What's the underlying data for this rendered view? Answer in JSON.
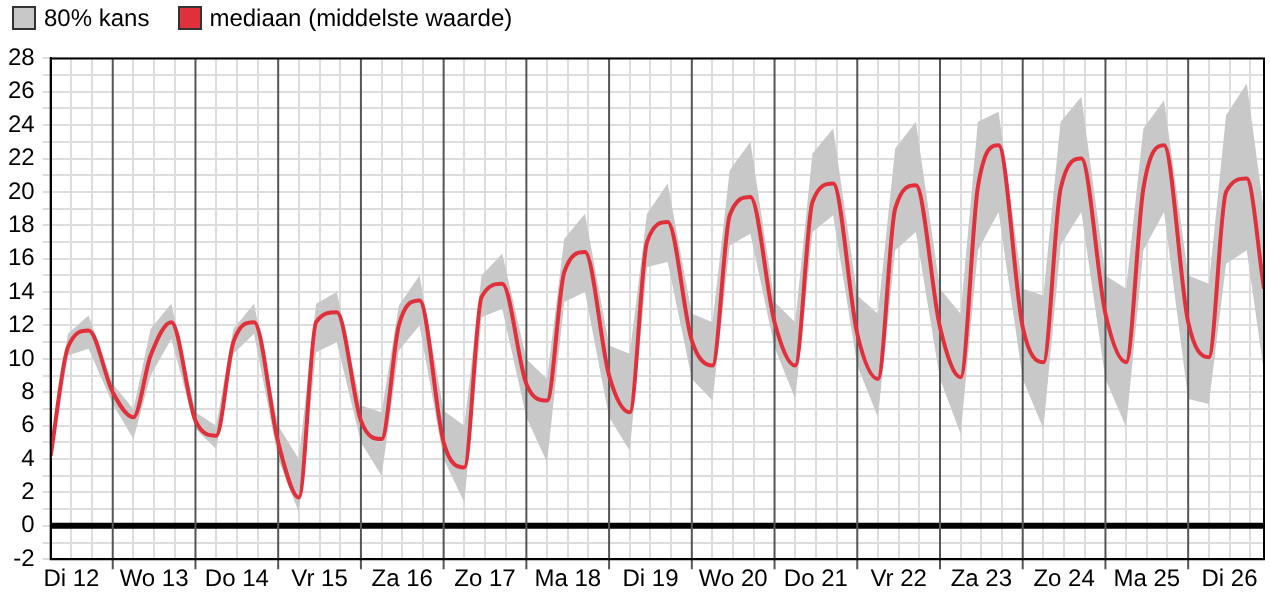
{
  "chart_data": {
    "type": "line",
    "legend": "top left",
    "grid": true,
    "marker": "none",
    "line_style": "solid",
    "annotations": [
      "80% kans"
    ],
    "x": [
      "--03-12T06:00",
      "--03-12T11:00",
      "--03-12T17:00",
      "--03-13T00:00",
      "--03-13T06:00",
      "--03-13T11:00",
      "--03-13T17:00",
      "--03-14T00:00",
      "--03-14T06:00",
      "--03-14T11:00",
      "--03-14T17:00",
      "--03-15T00:00",
      "--03-15T06:00",
      "--03-15T11:00",
      "--03-15T17:00",
      "--03-16T00:00",
      "--03-16T06:00",
      "--03-16T11:00",
      "--03-16T17:00",
      "--03-17T00:00",
      "--03-17T06:00",
      "--03-17T11:00",
      "--03-17T17:00",
      "--03-18T00:00",
      "--03-18T06:00",
      "--03-18T11:00",
      "--03-18T17:00",
      "--03-19T00:00",
      "--03-19T06:00",
      "--03-19T11:00",
      "--03-19T17:00",
      "--03-20T00:00",
      "--03-20T06:00",
      "--03-20T11:00",
      "--03-20T17:00",
      "--03-21T00:00",
      "--03-21T06:00",
      "--03-21T11:00",
      "--03-21T17:00",
      "--03-22T00:00",
      "--03-22T06:00",
      "--03-22T11:00",
      "--03-22T17:00",
      "--03-23T00:00",
      "--03-23T06:00",
      "--03-23T11:00",
      "--03-23T17:00",
      "--03-24T00:00",
      "--03-24T06:00",
      "--03-24T11:00",
      "--03-24T17:00",
      "--03-25T00:00",
      "--03-25T06:00",
      "--03-25T11:00",
      "--03-25T17:00",
      "--03-26T00:00",
      "--03-26T06:00",
      "--03-26T11:00",
      "--03-26T17:00",
      "--03-26T22:00"
    ],
    "xlim": [
      "--03-12T06:00",
      "--03-26T22:00"
    ],
    "xticks": [
      {
        "value": "--03-12T12:00",
        "label": "Di 12"
      },
      {
        "value": "--03-12T18:00",
        "label": null
      },
      {
        "value": "--03-13T06:00",
        "label": null
      },
      {
        "value": "--03-13T12:00",
        "label": "Wo 13"
      },
      {
        "value": "--03-13T18:00",
        "label": null
      },
      {
        "value": "--03-14T06:00",
        "label": null
      },
      {
        "value": "--03-14T12:00",
        "label": "Do 14"
      },
      {
        "value": "--03-14T18:00",
        "label": null
      },
      {
        "value": "--03-15T06:00",
        "label": null
      },
      {
        "value": "--03-15T12:00",
        "label": "Vr 15"
      },
      {
        "value": "--03-15T18:00",
        "label": null
      },
      {
        "value": "--03-16T06:00",
        "label": null
      },
      {
        "value": "--03-16T12:00",
        "label": "Za 16"
      },
      {
        "value": "--03-16T18:00",
        "label": null
      },
      {
        "value": "--03-17T06:00",
        "label": null
      },
      {
        "value": "--03-17T12:00",
        "label": "Zo 17"
      },
      {
        "value": "--03-17T18:00",
        "label": null
      },
      {
        "value": "--03-18T06:00",
        "label": null
      },
      {
        "value": "--03-18T12:00",
        "label": "Ma 18"
      },
      {
        "value": "--03-18T18:00",
        "label": null
      },
      {
        "value": "--03-19T06:00",
        "label": null
      },
      {
        "value": "--03-19T12:00",
        "label": "Di 19"
      },
      {
        "value": "--03-19T18:00",
        "label": null
      },
      {
        "value": "--03-20T06:00",
        "label": null
      },
      {
        "value": "--03-20T12:00",
        "label": "Wo 20"
      },
      {
        "value": "--03-20T18:00",
        "label": null
      },
      {
        "value": "--03-21T06:00",
        "label": null
      },
      {
        "value": "--03-21T12:00",
        "label": "Do 21"
      },
      {
        "value": "--03-21T18:00",
        "label": null
      },
      {
        "value": "--03-22T06:00",
        "label": null
      },
      {
        "value": "--03-22T12:00",
        "label": "Vr 22"
      },
      {
        "value": "--03-22T18:00",
        "label": null
      },
      {
        "value": "--03-23T06:00",
        "label": null
      },
      {
        "value": "--03-23T12:00",
        "label": "Za 23"
      },
      {
        "value": "--03-23T18:00",
        "label": null
      },
      {
        "value": "--03-24T06:00",
        "label": null
      },
      {
        "value": "--03-24T12:00",
        "label": "Zo 24"
      },
      {
        "value": "--03-24T18:00",
        "label": null
      },
      {
        "value": "--03-25T06:00",
        "label": null
      },
      {
        "value": "--03-25T12:00",
        "label": "Ma 25"
      },
      {
        "value": "--03-25T18:00",
        "label": null
      },
      {
        "value": "--03-26T06:00",
        "label": null
      },
      {
        "value": "--03-26T12:00",
        "label": "Di 26"
      },
      {
        "value": "--03-26T18:00",
        "label": null
      }
    ],
    "ylim": [
      -2,
      28
    ],
    "yticks": [
      -2,
      {
        "value": -1,
        "label": null
      },
      0,
      {
        "value": 1,
        "label": null
      },
      2,
      {
        "value": 3,
        "label": null
      },
      4,
      {
        "value": 5,
        "label": null
      },
      6,
      {
        "value": 7,
        "label": null
      },
      8,
      {
        "value": 9,
        "label": null
      },
      10,
      {
        "value": 11,
        "label": null
      },
      12,
      {
        "value": 13,
        "label": null
      },
      14,
      {
        "value": 15,
        "label": null
      },
      16,
      {
        "value": 17,
        "label": null
      },
      18,
      {
        "value": 19,
        "label": null
      },
      20,
      {
        "value": 21,
        "label": null
      },
      22,
      {
        "value": 23,
        "label": null
      },
      24,
      {
        "value": 25,
        "label": null
      },
      26,
      {
        "value": 27,
        "label": null
      },
      28
    ],
    "ref_lines": [
      {
        "axis": "y",
        "value": 0,
        "color": "#000000"
      },
      {
        "axis": "x",
        "value": "--03-13",
        "color": "#555555"
      },
      {
        "axis": "x",
        "value": "--03-14",
        "color": "#555555"
      },
      {
        "axis": "x",
        "value": "--03-15",
        "color": "#555555"
      },
      {
        "axis": "x",
        "value": "--03-16",
        "color": "#555555"
      },
      {
        "axis": "x",
        "value": "--03-17",
        "color": "#555555"
      },
      {
        "axis": "x",
        "value": "--03-18",
        "color": "#555555"
      },
      {
        "axis": "x",
        "value": "--03-19",
        "color": "#555555"
      },
      {
        "axis": "x",
        "value": "--03-20",
        "color": "#555555"
      },
      {
        "axis": "x",
        "value": "--03-21",
        "color": "#555555"
      },
      {
        "axis": "x",
        "value": "--03-22",
        "color": "#555555"
      },
      {
        "axis": "x",
        "value": "--03-23",
        "color": "#555555"
      },
      {
        "axis": "x",
        "value": "--03-24",
        "color": "#555555"
      },
      {
        "axis": "x",
        "value": "--03-25",
        "color": "#555555"
      },
      {
        "axis": "x",
        "value": "--03-26",
        "color": "#555555"
      }
    ],
    "series": [
      {
        "name": "mediaan (middelste waarde)",
        "color": "#e0303c",
        "values": [
          4.2,
          10.7,
          11.7,
          8,
          6.5,
          10.2,
          12.2,
          6.3,
          5.4,
          11,
          12.2,
          5,
          1.7,
          12.2,
          12.8,
          6.3,
          5.2,
          12,
          13.5,
          5,
          3.5,
          13.7,
          14.5,
          8.5,
          7.5,
          15.2,
          16.4,
          9,
          6.8,
          17,
          18.2,
          11.1,
          9.6,
          18.6,
          19.7,
          12.2,
          9.6,
          19.4,
          20.5,
          11.5,
          8.8,
          19,
          20.4,
          11.9,
          8.9,
          20.3,
          22.8,
          11.9,
          9.8,
          20.2,
          22,
          12.7,
          9.8,
          20.2,
          22.8,
          12.2,
          10.1,
          20,
          20.8,
          14.2
        ],
        "lower": [
          3.8,
          10.2,
          10.6,
          7.3,
          5.2,
          9,
          11.2,
          5.8,
          4.6,
          10.3,
          11.5,
          4,
          0.8,
          10.4,
          11,
          5,
          3,
          10.5,
          12,
          4,
          1.4,
          12.5,
          13,
          6.5,
          3.8,
          13.4,
          14,
          6.5,
          4.5,
          15.5,
          15.8,
          8.8,
          7.5,
          16.8,
          17.5,
          10.7,
          7.6,
          17.6,
          18.6,
          9.6,
          6.5,
          16.5,
          17.6,
          8.8,
          5.5,
          16.5,
          18.8,
          8.8,
          5.8,
          16.8,
          18.8,
          8.8,
          5.9,
          16.5,
          18.8,
          7.6,
          7.3,
          15.7,
          16.5,
          9.2
        ],
        "upper": [
          5,
          11.5,
          12.6,
          8.5,
          7,
          11.8,
          13.3,
          6.8,
          6,
          11.8,
          13.3,
          6,
          4,
          13.3,
          14,
          7.2,
          6.8,
          13.2,
          15,
          6.9,
          6,
          15,
          16.3,
          10,
          8.8,
          17.2,
          18.7,
          10.8,
          10.3,
          18.7,
          20.5,
          12.7,
          12.2,
          21.3,
          23,
          13.4,
          12.2,
          22.3,
          23.8,
          13.8,
          12.7,
          22.6,
          24.2,
          14.2,
          12.7,
          24.2,
          24.8,
          14.2,
          13.8,
          24.2,
          25.7,
          15,
          14.2,
          23.8,
          25.5,
          15,
          14.5,
          24.6,
          26.5,
          18.8
        ]
      }
    ]
  }
}
